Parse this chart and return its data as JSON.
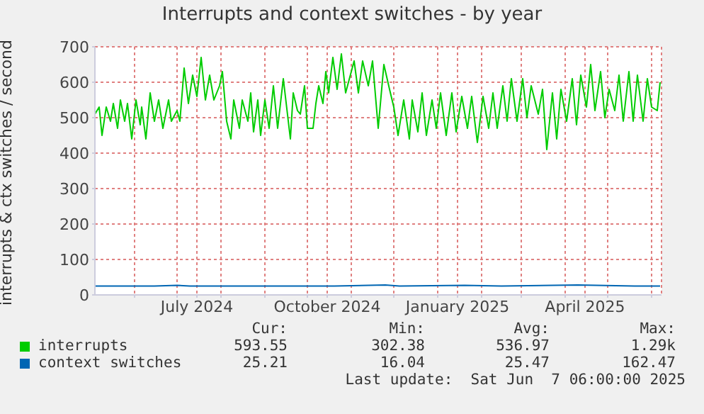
{
  "chart_data": {
    "type": "line",
    "title": "Interrupts and context switches - by year",
    "ylabel": "interrupts & ctx switches / second",
    "xlim": [
      "2024-05-04",
      "2025-06-08"
    ],
    "ylim": [
      0,
      700
    ],
    "yticks": [
      0,
      100,
      200,
      300,
      400,
      500,
      600,
      700
    ],
    "xticks": [
      {
        "value": "2024-06-01",
        "label": null
      },
      {
        "value": "2024-07-01",
        "label": null
      },
      {
        "value": "2024-07-15",
        "label": "July 2024"
      },
      {
        "value": "2024-08-01",
        "label": null
      },
      {
        "value": "2024-09-01",
        "label": null
      },
      {
        "value": "2024-10-01",
        "label": null
      },
      {
        "value": "2024-10-15",
        "label": "October 2024"
      },
      {
        "value": "2024-11-01",
        "label": null
      },
      {
        "value": "2024-12-01",
        "label": null
      },
      {
        "value": "2025-01-01",
        "label": null
      },
      {
        "value": "2025-01-15",
        "label": "January 2025"
      },
      {
        "value": "2025-02-01",
        "label": null
      },
      {
        "value": "2025-03-01",
        "label": null
      },
      {
        "value": "2025-04-01",
        "label": null
      },
      {
        "value": "2025-04-15",
        "label": "April 2025"
      },
      {
        "value": "2025-05-01",
        "label": null
      },
      {
        "value": "2025-06-01",
        "label": null
      }
    ],
    "grid": true,
    "legend": "bottom",
    "marker": "none",
    "series": [
      {
        "name": "interrupts",
        "color": "#00cc00",
        "x": [
          "2024-05-04",
          "2024-05-07",
          "2024-05-09",
          "2024-05-12",
          "2024-05-15",
          "2024-05-17",
          "2024-05-20",
          "2024-05-22",
          "2024-05-25",
          "2024-05-27",
          "2024-05-30",
          "2024-06-02",
          "2024-06-05",
          "2024-06-06",
          "2024-06-09",
          "2024-06-12",
          "2024-06-15",
          "2024-06-18",
          "2024-06-21",
          "2024-06-25",
          "2024-06-27",
          "2024-07-01",
          "2024-07-03",
          "2024-07-06",
          "2024-07-09",
          "2024-07-12",
          "2024-07-15",
          "2024-07-18",
          "2024-07-21",
          "2024-07-24",
          "2024-07-27",
          "2024-07-31",
          "2024-08-02",
          "2024-08-05",
          "2024-08-08",
          "2024-08-10",
          "2024-08-14",
          "2024-08-16",
          "2024-08-20",
          "2024-08-22",
          "2024-08-24",
          "2024-08-27",
          "2024-08-29",
          "2024-09-01",
          "2024-09-04",
          "2024-09-07",
          "2024-09-10",
          "2024-09-14",
          "2024-09-19",
          "2024-09-21",
          "2024-09-24",
          "2024-09-26",
          "2024-09-29",
          "2024-10-01",
          "2024-10-05",
          "2024-10-07",
          "2024-10-09",
          "2024-10-12",
          "2024-10-14",
          "2024-10-16",
          "2024-10-19",
          "2024-10-22",
          "2024-10-25",
          "2024-10-28",
          "2024-11-03",
          "2024-11-06",
          "2024-11-09",
          "2024-11-13",
          "2024-11-16",
          "2024-11-20",
          "2024-11-24",
          "2024-11-28",
          "2024-12-01",
          "2024-12-04",
          "2024-12-08",
          "2024-12-12",
          "2024-12-14",
          "2024-12-18",
          "2024-12-21",
          "2024-12-24",
          "2024-12-28",
          "2024-12-31",
          "2025-01-03",
          "2025-01-07",
          "2025-01-11",
          "2025-01-14",
          "2025-01-18",
          "2025-01-22",
          "2025-01-25",
          "2025-01-29",
          "2025-02-02",
          "2025-02-06",
          "2025-02-09",
          "2025-02-12",
          "2025-02-16",
          "2025-02-19",
          "2025-02-22",
          "2025-02-26",
          "2025-03-02",
          "2025-03-05",
          "2025-03-08",
          "2025-03-13",
          "2025-03-16",
          "2025-03-19",
          "2025-03-23",
          "2025-03-26",
          "2025-03-29",
          "2025-04-02",
          "2025-04-06",
          "2025-04-09",
          "2025-04-12",
          "2025-04-16",
          "2025-04-19",
          "2025-04-22",
          "2025-04-26",
          "2025-04-29",
          "2025-05-02",
          "2025-05-06",
          "2025-05-09",
          "2025-05-12",
          "2025-05-16",
          "2025-05-19",
          "2025-05-22",
          "2025-05-26",
          "2025-05-29",
          "2025-06-01",
          "2025-06-05",
          "2025-06-07"
        ],
        "values": [
          510,
          530,
          450,
          530,
          490,
          540,
          470,
          550,
          490,
          540,
          440,
          550,
          480,
          530,
          440,
          570,
          490,
          550,
          470,
          550,
          490,
          520,
          490,
          640,
          540,
          620,
          560,
          670,
          550,
          620,
          550,
          590,
          630,
          490,
          440,
          550,
          470,
          550,
          490,
          570,
          460,
          550,
          450,
          550,
          470,
          590,
          470,
          610,
          440,
          570,
          520,
          510,
          590,
          470,
          470,
          540,
          590,
          540,
          630,
          570,
          670,
          580,
          680,
          570,
          660,
          570,
          660,
          590,
          660,
          470,
          650,
          580,
          530,
          450,
          550,
          440,
          550,
          460,
          570,
          450,
          550,
          470,
          570,
          450,
          570,
          460,
          560,
          470,
          560,
          430,
          560,
          470,
          570,
          470,
          590,
          490,
          610,
          490,
          610,
          500,
          590,
          510,
          580,
          410,
          570,
          440,
          580,
          490,
          610,
          480,
          620,
          530,
          650,
          520,
          630,
          500,
          580,
          520,
          620,
          490,
          630,
          490,
          620,
          490,
          610,
          530,
          520,
          600
        ]
      },
      {
        "name": "context switches",
        "color": "#0066b3",
        "x": [
          "2024-05-04",
          "2024-06-15",
          "2024-07-01",
          "2024-07-10",
          "2024-10-20",
          "2024-11-25",
          "2024-12-05",
          "2025-01-20",
          "2025-02-15",
          "2025-04-10",
          "2025-05-20",
          "2025-06-07"
        ],
        "values": [
          25,
          25,
          27,
          25,
          25,
          28,
          25,
          27,
          25,
          28,
          25,
          25
        ]
      }
    ],
    "annotations": [
      "Cur:",
      "Min:",
      "Avg:",
      "Max:",
      "593.55",
      "302.38",
      "536.97",
      "1.29k",
      "25.21",
      "16.04",
      "25.47",
      "162.47",
      "Last update:  Sat Jun  7 06:00:00 2025"
    ]
  }
}
